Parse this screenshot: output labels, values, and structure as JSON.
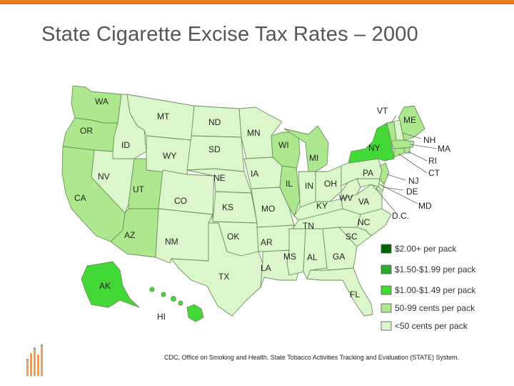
{
  "title": "State Cigarette Excise Tax Rates – 2000",
  "colors": {
    "tier1": "#006400",
    "tier2": "#2ea82e",
    "tier3": "#42d836",
    "tier4": "#aee88e",
    "tier5": "#dcf6cc",
    "accent_bar": "#e87b1e"
  },
  "legend": [
    {
      "label": "$2.00+ per pack",
      "tier": "tier1"
    },
    {
      "label": "$1.50-$1.99 per pack",
      "tier": "tier2"
    },
    {
      "label": "$1.00-$1.49 per pack",
      "tier": "tier3"
    },
    {
      "label": "50-99 cents per pack",
      "tier": "tier4"
    },
    {
      "label": "<50 cents per pack",
      "tier": "tier5"
    }
  ],
  "states": {
    "WA": {
      "label": "WA",
      "tier": "tier4"
    },
    "OR": {
      "label": "OR",
      "tier": "tier4"
    },
    "CA": {
      "label": "CA",
      "tier": "tier4"
    },
    "ID": {
      "label": "ID",
      "tier": "tier5"
    },
    "NV": {
      "label": "NV",
      "tier": "tier5"
    },
    "MT": {
      "label": "MT",
      "tier": "tier5"
    },
    "WY": {
      "label": "WY",
      "tier": "tier5"
    },
    "UT": {
      "label": "UT",
      "tier": "tier4"
    },
    "AZ": {
      "label": "AZ",
      "tier": "tier4"
    },
    "CO": {
      "label": "CO",
      "tier": "tier5"
    },
    "NM": {
      "label": "NM",
      "tier": "tier5"
    },
    "ND": {
      "label": "ND",
      "tier": "tier5"
    },
    "SD": {
      "label": "SD",
      "tier": "tier5"
    },
    "NE": {
      "label": "NE",
      "tier": "tier5"
    },
    "KS": {
      "label": "KS",
      "tier": "tier5"
    },
    "OK": {
      "label": "OK",
      "tier": "tier5"
    },
    "TX": {
      "label": "TX",
      "tier": "tier5"
    },
    "MN": {
      "label": "MN",
      "tier": "tier5"
    },
    "IA": {
      "label": "IA",
      "tier": "tier5"
    },
    "MO": {
      "label": "MO",
      "tier": "tier5"
    },
    "AR": {
      "label": "AR",
      "tier": "tier5"
    },
    "LA": {
      "label": "LA",
      "tier": "tier5"
    },
    "WI": {
      "label": "WI",
      "tier": "tier4"
    },
    "IL": {
      "label": "IL",
      "tier": "tier4"
    },
    "MI": {
      "label": "MI",
      "tier": "tier4"
    },
    "IN": {
      "label": "IN",
      "tier": "tier5"
    },
    "OH": {
      "label": "OH",
      "tier": "tier5"
    },
    "KY": {
      "label": "KY",
      "tier": "tier5"
    },
    "TN": {
      "label": "TN",
      "tier": "tier5"
    },
    "MS": {
      "label": "MS",
      "tier": "tier5"
    },
    "AL": {
      "label": "AL",
      "tier": "tier5"
    },
    "GA": {
      "label": "GA",
      "tier": "tier5"
    },
    "FL": {
      "label": "FL",
      "tier": "tier5"
    },
    "SC": {
      "label": "SC",
      "tier": "tier5"
    },
    "NC": {
      "label": "NC",
      "tier": "tier5"
    },
    "VA": {
      "label": "VA",
      "tier": "tier5"
    },
    "WV": {
      "label": "WV",
      "tier": "tier5"
    },
    "PA": {
      "label": "PA",
      "tier": "tier5"
    },
    "NY": {
      "label": "NY",
      "tier": "tier3"
    },
    "VT": {
      "label": "VT",
      "tier": "tier4"
    },
    "NH": {
      "label": "NH",
      "tier": "tier5"
    },
    "ME": {
      "label": "ME",
      "tier": "tier4"
    },
    "MA": {
      "label": "MA",
      "tier": "tier4"
    },
    "RI": {
      "label": "RI",
      "tier": "tier4"
    },
    "CT": {
      "label": "CT",
      "tier": "tier4"
    },
    "NJ": {
      "label": "NJ",
      "tier": "tier4"
    },
    "DE": {
      "label": "DE",
      "tier": "tier5"
    },
    "MD": {
      "label": "MD",
      "tier": "tier5"
    },
    "DC": {
      "label": "D.C.",
      "tier": "tier5"
    },
    "AK": {
      "label": "AK",
      "tier": "tier3"
    },
    "HI": {
      "label": "HI",
      "tier": "tier3"
    }
  },
  "source": "CDC, Office on Smoking and Health. State Tobacco Activities Tracking and Evaluation (STATE) System."
}
